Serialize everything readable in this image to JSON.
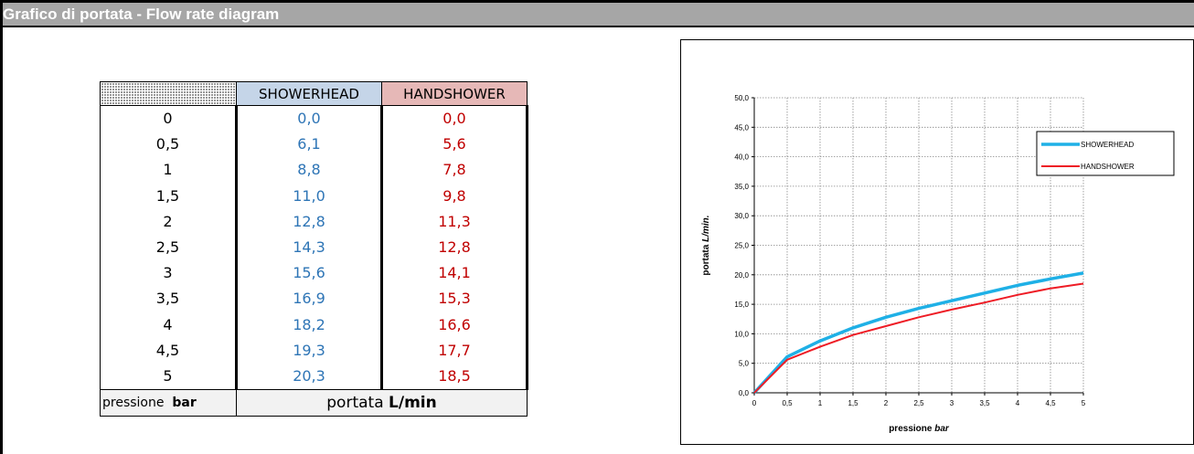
{
  "window": {
    "title": "Grafico di portata - Flow rate diagram"
  },
  "table": {
    "headers": {
      "showerhead": "SHOWERHEAD",
      "handshower": "HANDSHOWER"
    },
    "rows": [
      {
        "pressure": "0",
        "showerhead": "0,0",
        "handshower": "0,0"
      },
      {
        "pressure": "0,5",
        "showerhead": "6,1",
        "handshower": "5,6"
      },
      {
        "pressure": "1",
        "showerhead": "8,8",
        "handshower": "7,8"
      },
      {
        "pressure": "1,5",
        "showerhead": "11,0",
        "handshower": "9,8"
      },
      {
        "pressure": "2",
        "showerhead": "12,8",
        "handshower": "11,3"
      },
      {
        "pressure": "2,5",
        "showerhead": "14,3",
        "handshower": "12,8"
      },
      {
        "pressure": "3",
        "showerhead": "15,6",
        "handshower": "14,1"
      },
      {
        "pressure": "3,5",
        "showerhead": "16,9",
        "handshower": "15,3"
      },
      {
        "pressure": "4",
        "showerhead": "18,2",
        "handshower": "16,6"
      },
      {
        "pressure": "4,5",
        "showerhead": "19,3",
        "handshower": "17,7"
      },
      {
        "pressure": "5",
        "showerhead": "20,3",
        "handshower": "18,5"
      }
    ],
    "footer": {
      "pressure_word": "pressione",
      "pressure_unit": "bar",
      "flow_word": "portata",
      "flow_unit": "L/min"
    }
  },
  "colors": {
    "showerhead": "#1fb0e6",
    "handshower": "#ee1c25",
    "showerhead_text": "#2e75b6",
    "handshower_text": "#c00000",
    "showerhead_header_bg": "#c5d5e8",
    "handshower_header_bg": "#e6b8b7",
    "titlebar_bg": "#a6a6a6"
  },
  "chart_data": {
    "type": "line",
    "xlabel": "pressione bar",
    "ylabel": "portata L/min.",
    "xlim": [
      0,
      5
    ],
    "ylim": [
      0,
      50
    ],
    "x_ticks": [
      "0",
      "0,5",
      "1",
      "1,5",
      "2",
      "2,5",
      "3",
      "3,5",
      "4",
      "4,5",
      "5"
    ],
    "y_ticks": [
      "0,0",
      "5,0",
      "10,0",
      "15,0",
      "20,0",
      "25,0",
      "30,0",
      "35,0",
      "40,0",
      "45,0",
      "50,0"
    ],
    "grid": true,
    "legend_position": "top-right",
    "x": [
      0,
      0.5,
      1,
      1.5,
      2,
      2.5,
      3,
      3.5,
      4,
      4.5,
      5
    ],
    "series": [
      {
        "name": "SHOWERHEAD",
        "values": [
          0,
          6.1,
          8.8,
          11.0,
          12.8,
          14.3,
          15.6,
          16.9,
          18.2,
          19.3,
          20.3
        ]
      },
      {
        "name": "HANDSHOWER",
        "values": [
          0,
          5.6,
          7.8,
          9.8,
          11.3,
          12.8,
          14.1,
          15.3,
          16.6,
          17.7,
          18.5
        ]
      }
    ]
  }
}
